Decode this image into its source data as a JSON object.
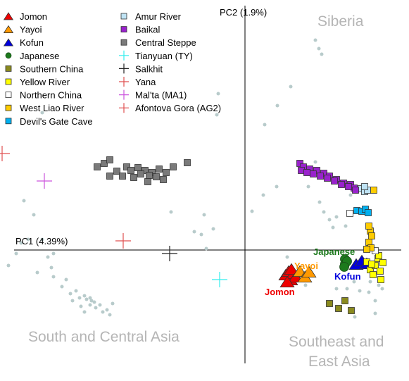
{
  "chart_data": {
    "type": "scatter",
    "xlabel": "PC1 (4.39%)",
    "ylabel": "PC2 (1.9%)",
    "grid": false,
    "legend_placement": "top-left",
    "region_labels": [
      {
        "text": "Siberia",
        "color": "#b5b5b5"
      },
      {
        "text": "South and Central Asia",
        "color": "#b5b5b5"
      },
      {
        "text": "Southeast and",
        "color": "#b5b5b5"
      },
      {
        "text": "East Asia",
        "color": "#b5b5b5"
      }
    ],
    "annotations": [
      {
        "text": "Japanese",
        "color": "#1d7a1d"
      },
      {
        "text": "Yayoi",
        "color": "#ff9900"
      },
      {
        "text": "Kofun",
        "color": "#0000dd"
      },
      {
        "text": "Jomon",
        "color": "#ee0000"
      }
    ],
    "series": [
      {
        "name": "Jomon",
        "marker": "triangle",
        "color": "#ee0000",
        "points": [
          [
            0.58,
            -0.35
          ],
          [
            0.62,
            -0.3
          ],
          [
            0.65,
            -0.42
          ],
          [
            0.69,
            -0.33
          ],
          [
            0.72,
            -0.38
          ],
          [
            0.66,
            -0.27
          ],
          [
            0.6,
            -0.45
          ]
        ]
      },
      {
        "name": "Yayoi",
        "marker": "triangle",
        "color": "#ff9900",
        "points": [
          [
            0.78,
            -0.3
          ],
          [
            0.85,
            -0.38
          ],
          [
            0.91,
            -0.31
          ]
        ]
      },
      {
        "name": "Kofun",
        "marker": "triangle",
        "color": "#0000dd",
        "points": [
          [
            1.58,
            -0.2
          ],
          [
            1.66,
            -0.15
          ],
          [
            1.73,
            -0.19
          ]
        ]
      },
      {
        "name": "Japanese",
        "marker": "circle",
        "color": "#1d7a1d",
        "points": [
          [
            1.42,
            -0.13
          ],
          [
            1.42,
            -0.2
          ],
          [
            1.45,
            -0.16
          ],
          [
            1.41,
            -0.24
          ]
        ]
      },
      {
        "name": "Southern China",
        "marker": "square",
        "color": "#8a8a1e",
        "points": [
          [
            1.2,
            -0.76
          ],
          [
            1.33,
            -0.83
          ],
          [
            1.51,
            -0.86
          ],
          [
            1.42,
            -0.72
          ]
        ]
      },
      {
        "name": "Yellow River",
        "marker": "square",
        "color": "#ffff00",
        "points": [
          [
            1.73,
            -0.17
          ],
          [
            1.78,
            -0.28
          ],
          [
            1.82,
            -0.35
          ],
          [
            1.85,
            -0.22
          ],
          [
            1.89,
            -0.12
          ],
          [
            1.92,
            -0.3
          ],
          [
            1.93,
            -0.42
          ],
          [
            1.96,
            -0.18
          ],
          [
            1.9,
            -0.08
          ],
          [
            1.8,
            -0.2
          ]
        ]
      },
      {
        "name": "Northern China",
        "marker": "square",
        "color": "#ffffff",
        "points": [
          [
            1.49,
            0.52
          ],
          [
            1.85,
            -0.01
          ]
        ]
      },
      {
        "name": "West Liao River",
        "marker": "square",
        "color": "#ffcc00",
        "points": [
          [
            1.78,
            0.27
          ],
          [
            1.8,
            0.2
          ],
          [
            1.76,
            0.11
          ],
          [
            1.79,
            0.03
          ],
          [
            1.73,
            0.01
          ],
          [
            1.76,
            0.34
          ],
          [
            1.83,
            0.85
          ]
        ]
      },
      {
        "name": "Devil's Gate Cave",
        "marker": "square",
        "color": "#00b0f0",
        "points": [
          [
            1.59,
            0.56
          ],
          [
            1.66,
            0.55
          ],
          [
            1.71,
            0.58
          ],
          [
            1.75,
            0.53
          ]
        ]
      },
      {
        "name": "Amur River",
        "marker": "square",
        "color": "#bfe3f4",
        "points": [
          [
            1.65,
            0.87
          ],
          [
            1.7,
            0.83
          ],
          [
            1.74,
            0.85
          ],
          [
            1.7,
            0.9
          ]
        ]
      },
      {
        "name": "Baikal",
        "marker": "square",
        "color": "#9922cc",
        "points": [
          [
            0.78,
            1.23
          ],
          [
            0.83,
            1.18
          ],
          [
            0.92,
            1.15
          ],
          [
            1.02,
            1.13
          ],
          [
            1.12,
            1.09
          ],
          [
            1.2,
            1.05
          ],
          [
            1.3,
            1.0
          ],
          [
            1.4,
            0.95
          ],
          [
            1.5,
            0.93
          ],
          [
            1.55,
            0.88
          ],
          [
            0.8,
            1.13
          ],
          [
            0.88,
            1.1
          ],
          [
            0.97,
            1.08
          ],
          [
            1.07,
            1.05
          ],
          [
            1.17,
            1.02
          ],
          [
            1.27,
            0.98
          ],
          [
            1.37,
            0.93
          ],
          [
            1.47,
            0.9
          ],
          [
            1.57,
            0.85
          ]
        ]
      },
      {
        "name": "Central Steppe",
        "marker": "square",
        "color": "#7a7a7a",
        "points": [
          [
            -2.1,
            1.18
          ],
          [
            -2.0,
            1.23
          ],
          [
            -1.92,
            1.28
          ],
          [
            -1.82,
            1.12
          ],
          [
            -1.68,
            1.18
          ],
          [
            -1.62,
            1.13
          ],
          [
            -1.52,
            1.17
          ],
          [
            -1.42,
            1.13
          ],
          [
            -1.32,
            1.1
          ],
          [
            -1.22,
            1.15
          ],
          [
            -1.12,
            1.1
          ],
          [
            -1.02,
            1.18
          ],
          [
            -1.36,
            1.06
          ],
          [
            -1.48,
            1.08
          ],
          [
            -1.58,
            1.03
          ],
          [
            -1.26,
            1.04
          ],
          [
            -1.16,
            1.0
          ],
          [
            -1.38,
            0.97
          ],
          [
            -1.74,
            1.05
          ],
          [
            -1.92,
            1.05
          ],
          [
            -0.82,
            1.24
          ]
        ]
      },
      {
        "name": "Tianyuan (TY)",
        "marker": "plus",
        "color": "#33eeee",
        "points": [
          [
            -0.36,
            -0.42
          ]
        ]
      },
      {
        "name": "Salkhit",
        "marker": "plus",
        "color": "#222222",
        "points": [
          [
            -1.07,
            -0.05
          ]
        ]
      },
      {
        "name": "Yana",
        "marker": "plus",
        "color": "#e05050",
        "points": [
          [
            -3.45,
            1.37
          ]
        ]
      },
      {
        "name": "Mal'ta (MA1)",
        "marker": "plus",
        "color": "#cc55dd",
        "points": [
          [
            -2.85,
            0.98
          ]
        ]
      },
      {
        "name": "Afontova Gora (AG2)",
        "marker": "plus",
        "color": "#e05050",
        "points": [
          [
            -1.73,
            0.13
          ]
        ]
      },
      {
        "name": "",
        "marker": "dot",
        "color": "#b8cbcb",
        "points": [
          [
            1.0,
            2.98
          ],
          [
            1.05,
            2.86
          ],
          [
            1.09,
            2.78
          ],
          [
            0.65,
            2.32
          ],
          [
            0.46,
            2.05
          ],
          [
            0.28,
            1.78
          ],
          [
            -0.38,
            2.22
          ],
          [
            -0.4,
            1.92
          ],
          [
            0.45,
            0.9
          ],
          [
            0.9,
            0.9
          ],
          [
            1.0,
            1.25
          ],
          [
            1.06,
            0.68
          ],
          [
            1.12,
            0.54
          ],
          [
            1.2,
            0.43
          ],
          [
            1.3,
            0.47
          ],
          [
            1.25,
            0.32
          ],
          [
            1.43,
            0.34
          ],
          [
            1.5,
            0.78
          ],
          [
            0.26,
            0.78
          ],
          [
            0.1,
            0.55
          ],
          [
            0.6,
            -0.1
          ],
          [
            -0.58,
            0.5
          ],
          [
            -0.45,
            0.3
          ],
          [
            -0.62,
            0.22
          ],
          [
            -0.72,
            0.26
          ],
          [
            -1.05,
            0.54
          ],
          [
            -0.55,
            0.02
          ],
          [
            -2.88,
            1.95
          ],
          [
            -3.14,
            0.7
          ],
          [
            -3.0,
            0.5
          ],
          [
            -3.08,
            0.15
          ],
          [
            -2.88,
            0.15
          ],
          [
            -3.18,
            0.1
          ],
          [
            -3.25,
            -0.05
          ],
          [
            -2.72,
            -0.05
          ],
          [
            -2.8,
            -0.1
          ],
          [
            -3.36,
            -0.22
          ],
          [
            -2.75,
            -0.25
          ],
          [
            -2.95,
            -0.32
          ],
          [
            -2.72,
            -0.38
          ],
          [
            -2.54,
            -0.42
          ],
          [
            -2.6,
            -0.52
          ],
          [
            -2.4,
            -0.58
          ],
          [
            -2.48,
            -0.62
          ],
          [
            -2.35,
            -0.68
          ],
          [
            -2.28,
            -0.65
          ],
          [
            -2.25,
            -0.7
          ],
          [
            -2.2,
            -0.68
          ],
          [
            -2.18,
            -0.72
          ],
          [
            -2.14,
            -0.74
          ],
          [
            -2.2,
            -0.78
          ],
          [
            -2.12,
            -0.82
          ],
          [
            -2.06,
            -0.78
          ],
          [
            -2.02,
            -0.88
          ],
          [
            -1.96,
            -0.85
          ],
          [
            -1.92,
            -0.92
          ],
          [
            -2.28,
            -0.88
          ],
          [
            -2.45,
            -0.72
          ],
          [
            -1.88,
            -0.76
          ],
          [
            -2.33,
            -0.8
          ],
          [
            0.58,
            -0.5
          ],
          [
            0.86,
            -0.5
          ],
          [
            1.3,
            -0.55
          ],
          [
            1.45,
            -0.55
          ],
          [
            1.55,
            -0.45
          ],
          [
            1.63,
            -0.58
          ],
          [
            1.56,
            -0.95
          ],
          [
            1.85,
            -0.9
          ],
          [
            1.85,
            -0.72
          ],
          [
            1.76,
            -0.6
          ],
          [
            1.78,
            -0.45
          ],
          [
            1.9,
            -0.5
          ],
          [
            1.95,
            -0.55
          ]
        ]
      }
    ],
    "legend": [
      {
        "label": "Jomon",
        "series": 0
      },
      {
        "label": "Yayoi",
        "series": 1
      },
      {
        "label": "Kofun",
        "series": 2
      },
      {
        "label": "Japanese",
        "series": 3
      },
      {
        "label": "Southern China",
        "series": 4
      },
      {
        "label": "Yellow River",
        "series": 5
      },
      {
        "label": "Northern China",
        "series": 6
      },
      {
        "label": "West Liao River",
        "series": 7
      },
      {
        "label": "Devil's Gate Cave",
        "series": 8
      },
      {
        "label": "Amur River",
        "series": 9
      },
      {
        "label": "Baikal",
        "series": 10
      },
      {
        "label": "Central Steppe",
        "series": 11
      },
      {
        "label": "Tianyuan (TY)",
        "series": 12
      },
      {
        "label": "Salkhit",
        "series": 13
      },
      {
        "label": "Yana",
        "series": 14
      },
      {
        "label": "Mal'ta (MA1)",
        "series": 15
      },
      {
        "label": "Afontova Gora (AG2)",
        "series": 16
      }
    ]
  }
}
